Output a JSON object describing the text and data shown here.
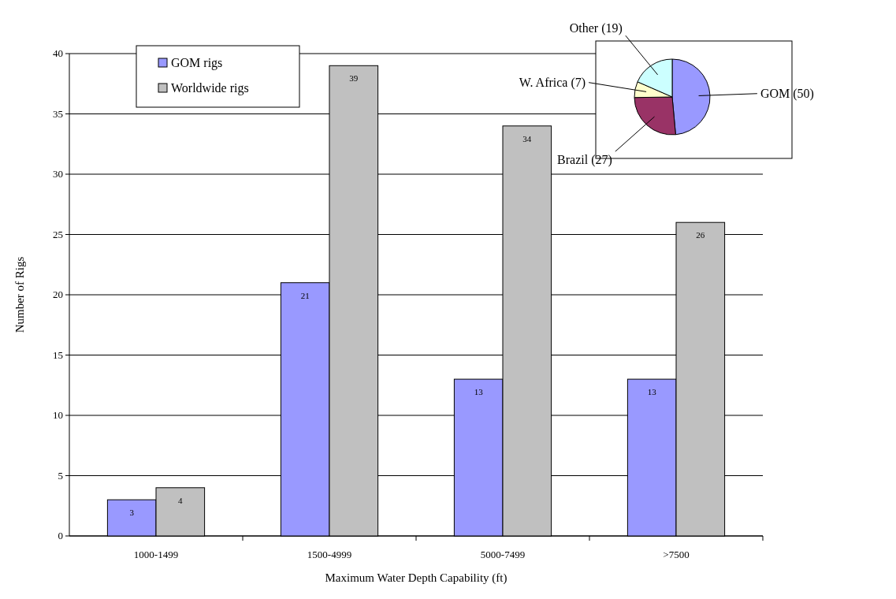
{
  "chart_data": [
    {
      "type": "bar",
      "xlabel": "Maximum Water Depth Capability (ft)",
      "ylabel": "Number of Rigs",
      "categories": [
        "1000-1499",
        "1500-4999",
        "5000-7499",
        ">7500"
      ],
      "series": [
        {
          "name": "GOM rigs",
          "color": "#9999ff",
          "values": [
            3,
            21,
            13,
            13
          ]
        },
        {
          "name": "Worldwide rigs",
          "color": "#c0c0c0",
          "values": [
            4,
            39,
            34,
            26
          ]
        }
      ],
      "ylim": [
        0,
        40
      ],
      "yticks": [
        0,
        5,
        10,
        15,
        20,
        25,
        30,
        35,
        40
      ],
      "grid": "y",
      "legend": "top left",
      "data_labels": true
    },
    {
      "type": "pie",
      "categories": [
        "GOM (50)",
        "Brazil (27)",
        "W. Africa (7)",
        "Other (19)"
      ],
      "values": [
        50,
        27,
        7,
        19
      ],
      "colors": [
        "#9999ff",
        "#993366",
        "#ffffcc",
        "#ccffff"
      ]
    }
  ]
}
